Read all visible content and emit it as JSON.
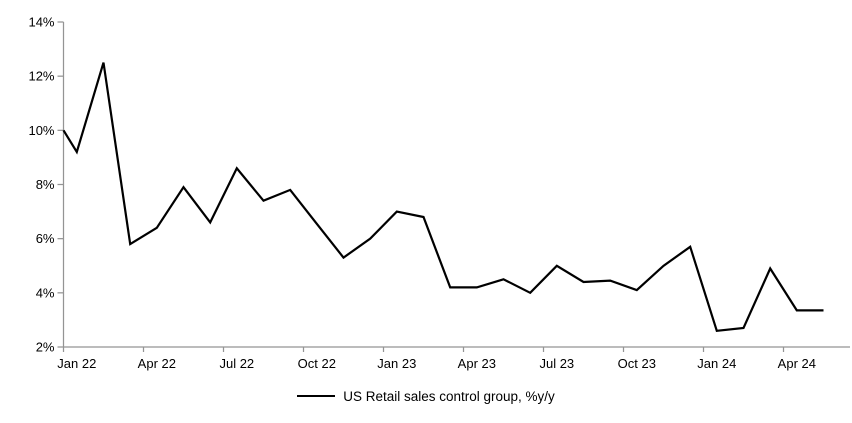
{
  "chart_data": {
    "type": "line",
    "title": "",
    "xlabel": "",
    "ylabel": "",
    "x": [
      "Jan 22",
      "Feb 22",
      "Mar 22",
      "Apr 22",
      "May 22",
      "Jun 22",
      "Jul 22",
      "Aug 22",
      "Sep 22",
      "Oct 22",
      "Nov 22",
      "Dec 22",
      "Jan 23",
      "Feb 23",
      "Mar 23",
      "Apr 23",
      "May 23",
      "Jun 23",
      "Jul 23",
      "Aug 23",
      "Sep 23",
      "Oct 23",
      "Nov 23",
      "Dec 23",
      "Jan 24",
      "Feb 24",
      "Mar 24",
      "Apr 24",
      "May 24"
    ],
    "series": [
      {
        "name": "US Retail sales control group, %y/y",
        "values": [
          9.2,
          12.5,
          5.8,
          6.4,
          7.9,
          6.6,
          8.6,
          7.4,
          7.8,
          6.55,
          5.3,
          6.0,
          7.0,
          6.8,
          4.2,
          4.2,
          4.5,
          4.0,
          5.0,
          4.4,
          4.45,
          4.1,
          5.0,
          5.7,
          2.6,
          2.7,
          4.9,
          3.35,
          3.35
        ]
      }
    ],
    "lead_in_value_at_left_axis": 10.0,
    "ylim": [
      2,
      14
    ],
    "y_tick_values": [
      14,
      12,
      10,
      8,
      6,
      4,
      2
    ],
    "y_tick_labels": [
      "14%",
      "12%",
      "10%",
      "8%",
      "6%",
      "4%",
      "2%"
    ],
    "x_tick_labels": [
      "Jan 22",
      "Apr 22",
      "Jul 22",
      "Oct 22",
      "Jan 23",
      "Apr 23",
      "Jul 23",
      "Oct 23",
      "Jan 24",
      "Apr 24"
    ],
    "x_tick_label_month_indices": [
      0,
      3,
      6,
      9,
      12,
      15,
      18,
      21,
      24,
      27
    ],
    "grid": false,
    "legend": [
      "US Retail sales control group, %y/y"
    ],
    "legend_position": "bottom-center"
  },
  "colors": {
    "line": "#000000",
    "axis": "#949494",
    "text": "#000000",
    "background": "#ffffff"
  }
}
